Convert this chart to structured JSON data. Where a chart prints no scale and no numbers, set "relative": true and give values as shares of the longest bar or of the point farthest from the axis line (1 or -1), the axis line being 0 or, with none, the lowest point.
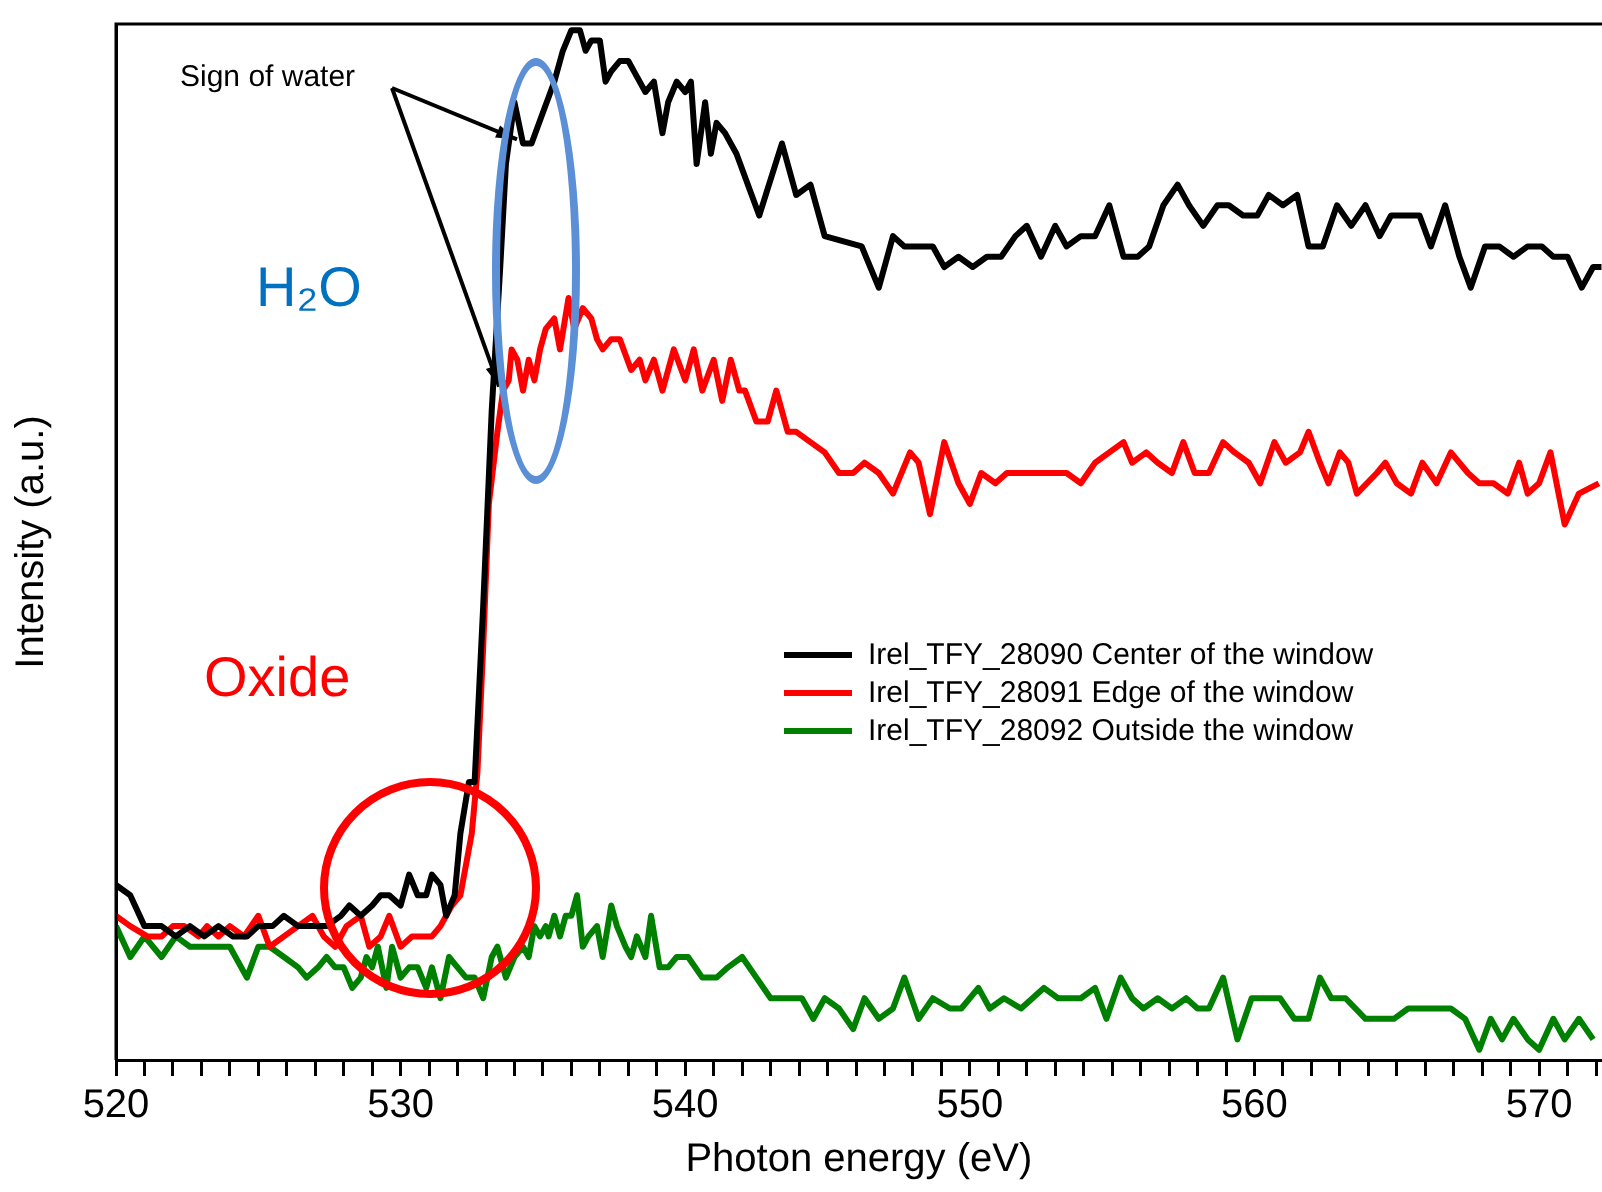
{
  "chart_data": {
    "type": "line",
    "relative": true,
    "xlabel": "Photon energy (eV)",
    "ylabel": "Intensity (a.u.)",
    "xlim": [
      520,
      572.2
    ],
    "xticks": [
      520,
      {
        "value": 521,
        "label": null
      },
      {
        "value": 522,
        "label": null
      },
      {
        "value": 523,
        "label": null
      },
      {
        "value": 524,
        "label": null
      },
      {
        "value": 525,
        "label": null
      },
      {
        "value": 526,
        "label": null
      },
      {
        "value": 527,
        "label": null
      },
      {
        "value": 528,
        "label": null
      },
      {
        "value": 529,
        "label": null
      },
      530,
      {
        "value": 531,
        "label": null
      },
      {
        "value": 532,
        "label": null
      },
      {
        "value": 533,
        "label": null
      },
      {
        "value": 534,
        "label": null
      },
      {
        "value": 535,
        "label": null
      },
      {
        "value": 536,
        "label": null
      },
      {
        "value": 537,
        "label": null
      },
      {
        "value": 538,
        "label": null
      },
      {
        "value": 539,
        "label": null
      },
      540,
      {
        "value": 541,
        "label": null
      },
      {
        "value": 542,
        "label": null
      },
      {
        "value": 543,
        "label": null
      },
      {
        "value": 544,
        "label": null
      },
      {
        "value": 545,
        "label": null
      },
      {
        "value": 546,
        "label": null
      },
      {
        "value": 547,
        "label": null
      },
      {
        "value": 548,
        "label": null
      },
      {
        "value": 549,
        "label": null
      },
      550,
      {
        "value": 551,
        "label": null
      },
      {
        "value": 552,
        "label": null
      },
      {
        "value": 553,
        "label": null
      },
      {
        "value": 554,
        "label": null
      },
      {
        "value": 555,
        "label": null
      },
      {
        "value": 556,
        "label": null
      },
      {
        "value": 557,
        "label": null
      },
      {
        "value": 558,
        "label": null
      },
      {
        "value": 559,
        "label": null
      },
      560,
      {
        "value": 561,
        "label": null
      },
      {
        "value": 562,
        "label": null
      },
      {
        "value": 563,
        "label": null
      },
      {
        "value": 564,
        "label": null
      },
      {
        "value": 565,
        "label": null
      },
      {
        "value": 566,
        "label": null
      },
      {
        "value": 567,
        "label": null
      },
      {
        "value": 568,
        "label": null
      },
      {
        "value": 569,
        "label": null
      },
      570,
      {
        "value": 571,
        "label": null
      },
      {
        "value": 572,
        "label": null
      }
    ],
    "legend": "right",
    "grid": false,
    "marker": "none",
    "line_style": "solid",
    "annotations": [
      "Sign of water",
      "H₂O",
      "Oxide"
    ],
    "series": [
      {
        "name": "Irel_TFY_28090 Center of the window",
        "color": "#000000",
        "x": [
          520.0,
          520.5,
          521.0,
          521.6,
          522.1,
          522.6,
          523.1,
          523.6,
          524.1,
          524.6,
          525.0,
          525.5,
          525.9,
          526.4,
          526.9,
          527.4,
          527.9,
          528.2,
          528.6,
          529.0,
          529.3,
          529.6,
          530.0,
          530.3,
          530.6,
          530.9,
          531.1,
          531.4,
          531.6,
          531.9,
          532.1,
          532.4,
          532.6,
          532.9,
          533.2,
          533.5,
          533.7,
          534.0,
          534.3,
          534.6,
          535.0,
          535.4,
          535.7,
          536.0,
          536.3,
          536.5,
          536.7,
          537.0,
          537.2,
          537.4,
          537.7,
          538.0,
          538.2,
          538.6,
          538.9,
          539.2,
          539.4,
          539.7,
          540.0,
          540.2,
          540.4,
          540.7,
          540.9,
          541.1,
          541.4,
          541.8,
          542.6,
          543.4,
          543.9,
          544.4,
          544.9,
          546.2,
          546.8,
          547.3,
          547.7,
          548.7,
          549.1,
          549.6,
          550.1,
          550.6,
          551.1,
          551.6,
          552.0,
          552.5,
          553.0,
          553.4,
          553.9,
          554.4,
          554.9,
          555.4,
          555.9,
          556.3,
          556.8,
          557.3,
          557.7,
          558.2,
          558.7,
          559.1,
          559.6,
          560.1,
          560.5,
          561.0,
          561.5,
          561.9,
          562.4,
          562.9,
          563.4,
          563.9,
          564.4,
          564.8,
          565.3,
          565.8,
          566.2,
          566.7,
          567.2,
          567.6,
          568.1,
          568.6,
          569.1,
          569.6,
          570.1,
          570.5,
          571.0,
          571.5,
          571.9,
          572.2
        ],
        "values": [
          0.17,
          0.16,
          0.13,
          0.13,
          0.12,
          0.13,
          0.12,
          0.13,
          0.12,
          0.12,
          0.13,
          0.13,
          0.14,
          0.13,
          0.13,
          0.13,
          0.14,
          0.15,
          0.14,
          0.15,
          0.16,
          0.16,
          0.15,
          0.18,
          0.16,
          0.16,
          0.18,
          0.17,
          0.14,
          0.16,
          0.22,
          0.27,
          0.27,
          0.44,
          0.63,
          0.77,
          0.87,
          0.93,
          0.89,
          0.89,
          0.92,
          0.95,
          0.98,
          1.0,
          1.0,
          0.98,
          0.99,
          0.99,
          0.95,
          0.96,
          0.97,
          0.97,
          0.96,
          0.94,
          0.95,
          0.9,
          0.93,
          0.95,
          0.94,
          0.95,
          0.87,
          0.93,
          0.88,
          0.91,
          0.9,
          0.88,
          0.82,
          0.89,
          0.84,
          0.85,
          0.8,
          0.79,
          0.75,
          0.8,
          0.79,
          0.79,
          0.77,
          0.78,
          0.77,
          0.78,
          0.78,
          0.8,
          0.81,
          0.78,
          0.81,
          0.79,
          0.8,
          0.8,
          0.83,
          0.78,
          0.78,
          0.79,
          0.83,
          0.85,
          0.83,
          0.81,
          0.83,
          0.83,
          0.82,
          0.82,
          0.84,
          0.83,
          0.84,
          0.79,
          0.79,
          0.83,
          0.81,
          0.83,
          0.8,
          0.82,
          0.82,
          0.82,
          0.79,
          0.83,
          0.78,
          0.75,
          0.79,
          0.79,
          0.78,
          0.79,
          0.79,
          0.78,
          0.78,
          0.75,
          0.77,
          0.77
        ]
      },
      {
        "name": "Irel_TFY_28091 Edge of the window",
        "color": "#ff0000",
        "x": [
          520.0,
          520.5,
          521.1,
          521.6,
          522.0,
          522.4,
          522.9,
          523.2,
          523.6,
          524.0,
          524.5,
          525.0,
          525.4,
          525.9,
          526.4,
          526.9,
          527.3,
          527.7,
          528.1,
          528.6,
          528.9,
          529.3,
          529.6,
          530.0,
          530.4,
          530.7,
          531.1,
          531.4,
          531.8,
          532.1,
          532.5,
          532.7,
          532.9,
          533.1,
          533.4,
          533.6,
          533.8,
          533.9,
          534.1,
          534.3,
          534.5,
          534.7,
          534.9,
          535.1,
          535.4,
          535.6,
          535.9,
          536.1,
          536.4,
          536.7,
          536.9,
          537.1,
          537.4,
          537.7,
          538.1,
          538.4,
          538.6,
          538.9,
          539.2,
          539.6,
          540.0,
          540.3,
          540.6,
          541.0,
          541.3,
          541.6,
          541.9,
          542.1,
          542.5,
          542.9,
          543.2,
          543.6,
          543.9,
          544.4,
          544.9,
          545.4,
          545.9,
          546.3,
          546.8,
          547.3,
          547.9,
          548.2,
          548.6,
          549.1,
          549.6,
          550.0,
          550.4,
          550.9,
          551.3,
          552.1,
          552.9,
          553.4,
          553.9,
          554.4,
          554.9,
          555.4,
          555.7,
          556.2,
          556.6,
          557.1,
          557.5,
          557.9,
          558.4,
          558.9,
          559.3,
          559.8,
          560.2,
          560.7,
          561.1,
          561.6,
          561.9,
          562.3,
          562.6,
          563.0,
          563.3,
          563.6,
          564.3,
          564.6,
          565.0,
          565.5,
          565.9,
          566.4,
          566.9,
          567.5,
          567.9,
          568.4,
          568.9,
          569.3,
          569.6,
          570.0,
          570.4,
          570.9,
          571.4,
          572.1
        ],
        "values": [
          0.14,
          0.13,
          0.12,
          0.12,
          0.13,
          0.13,
          0.12,
          0.13,
          0.12,
          0.13,
          0.12,
          0.14,
          0.11,
          0.12,
          0.13,
          0.14,
          0.12,
          0.11,
          0.13,
          0.14,
          0.11,
          0.12,
          0.14,
          0.11,
          0.12,
          0.12,
          0.12,
          0.13,
          0.15,
          0.16,
          0.22,
          0.28,
          0.4,
          0.54,
          0.61,
          0.65,
          0.66,
          0.69,
          0.68,
          0.65,
          0.68,
          0.66,
          0.69,
          0.71,
          0.72,
          0.69,
          0.74,
          0.71,
          0.73,
          0.72,
          0.7,
          0.69,
          0.7,
          0.7,
          0.67,
          0.68,
          0.66,
          0.68,
          0.65,
          0.69,
          0.66,
          0.69,
          0.65,
          0.68,
          0.64,
          0.68,
          0.65,
          0.65,
          0.62,
          0.62,
          0.65,
          0.61,
          0.61,
          0.6,
          0.59,
          0.57,
          0.57,
          0.58,
          0.57,
          0.55,
          0.59,
          0.58,
          0.53,
          0.6,
          0.56,
          0.54,
          0.57,
          0.56,
          0.57,
          0.57,
          0.57,
          0.57,
          0.56,
          0.58,
          0.59,
          0.6,
          0.58,
          0.59,
          0.58,
          0.57,
          0.6,
          0.57,
          0.57,
          0.6,
          0.59,
          0.58,
          0.56,
          0.6,
          0.58,
          0.59,
          0.61,
          0.58,
          0.56,
          0.59,
          0.58,
          0.55,
          0.57,
          0.58,
          0.56,
          0.55,
          0.58,
          0.56,
          0.59,
          0.57,
          0.56,
          0.56,
          0.55,
          0.58,
          0.55,
          0.56,
          0.59,
          0.52,
          0.55,
          0.56
        ]
      },
      {
        "name": "Irel_TFY_28092 Outside the window",
        "color": "#008000",
        "x": [
          520.0,
          520.5,
          521.0,
          521.6,
          522.1,
          522.6,
          523.1,
          523.6,
          524.0,
          524.6,
          525.0,
          525.4,
          525.9,
          526.4,
          526.7,
          527.1,
          527.4,
          527.7,
          528.0,
          528.3,
          528.6,
          528.8,
          529.0,
          529.2,
          529.5,
          529.7,
          530.0,
          530.3,
          530.6,
          530.9,
          531.1,
          531.4,
          531.7,
          532.0,
          532.3,
          532.6,
          532.9,
          533.2,
          533.4,
          533.7,
          534.0,
          534.3,
          534.5,
          534.7,
          534.9,
          535.1,
          535.2,
          535.4,
          535.6,
          535.8,
          536.0,
          536.2,
          536.4,
          536.6,
          536.9,
          537.1,
          537.4,
          537.6,
          537.9,
          538.1,
          538.3,
          538.6,
          538.8,
          539.1,
          539.4,
          539.7,
          540.1,
          540.6,
          541.1,
          541.5,
          542.0,
          542.5,
          543.0,
          543.6,
          544.1,
          544.5,
          544.9,
          545.4,
          545.9,
          546.3,
          546.8,
          547.3,
          547.7,
          548.2,
          548.7,
          549.3,
          549.7,
          550.3,
          550.7,
          551.2,
          551.8,
          552.2,
          552.6,
          553.1,
          553.5,
          553.9,
          554.4,
          554.8,
          555.3,
          555.7,
          556.1,
          556.6,
          557.1,
          557.6,
          558.0,
          558.4,
          558.9,
          559.4,
          559.9,
          560.4,
          560.9,
          561.4,
          561.9,
          562.3,
          562.7,
          563.2,
          563.9,
          564.3,
          564.9,
          565.4,
          565.9,
          566.4,
          566.9,
          567.4,
          567.9,
          568.3,
          568.7,
          569.1,
          569.6,
          570.0,
          570.5,
          570.9,
          571.4,
          571.9
        ],
        "values": [
          0.13,
          0.1,
          0.12,
          0.1,
          0.12,
          0.11,
          0.11,
          0.11,
          0.11,
          0.08,
          0.11,
          0.11,
          0.1,
          0.09,
          0.08,
          0.09,
          0.1,
          0.09,
          0.09,
          0.07,
          0.08,
          0.1,
          0.09,
          0.11,
          0.07,
          0.11,
          0.08,
          0.09,
          0.09,
          0.07,
          0.09,
          0.06,
          0.1,
          0.09,
          0.08,
          0.08,
          0.06,
          0.1,
          0.11,
          0.08,
          0.1,
          0.11,
          0.1,
          0.13,
          0.12,
          0.13,
          0.12,
          0.14,
          0.12,
          0.14,
          0.14,
          0.16,
          0.11,
          0.12,
          0.13,
          0.1,
          0.15,
          0.13,
          0.11,
          0.1,
          0.12,
          0.1,
          0.14,
          0.09,
          0.09,
          0.1,
          0.1,
          0.08,
          0.08,
          0.09,
          0.1,
          0.08,
          0.06,
          0.06,
          0.06,
          0.04,
          0.06,
          0.05,
          0.03,
          0.06,
          0.04,
          0.05,
          0.08,
          0.04,
          0.06,
          0.05,
          0.05,
          0.07,
          0.05,
          0.06,
          0.05,
          0.06,
          0.07,
          0.06,
          0.06,
          0.06,
          0.07,
          0.04,
          0.08,
          0.06,
          0.05,
          0.06,
          0.05,
          0.06,
          0.05,
          0.05,
          0.08,
          0.02,
          0.06,
          0.06,
          0.06,
          0.04,
          0.04,
          0.08,
          0.06,
          0.06,
          0.04,
          0.04,
          0.04,
          0.05,
          0.05,
          0.05,
          0.05,
          0.04,
          0.01,
          0.04,
          0.02,
          0.04,
          0.02,
          0.01,
          0.04,
          0.02,
          0.04,
          0.02
        ]
      }
    ]
  }
}
